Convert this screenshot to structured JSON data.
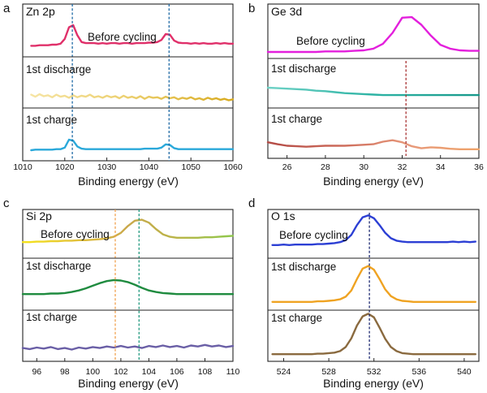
{
  "chart_data": [
    {
      "type": "line",
      "panel_label": "a",
      "title": "Zn 2p",
      "xlabel": "Binding energy (eV)",
      "xlim": [
        1010,
        1060
      ],
      "ylim": [
        0,
        100
      ],
      "xticks": [
        1010,
        1020,
        1030,
        1040,
        1050,
        1060
      ],
      "grid": false,
      "x": [
        1012,
        1013,
        1014,
        1015,
        1016,
        1017,
        1018,
        1019,
        1020,
        1021,
        1022,
        1023,
        1024,
        1025,
        1026,
        1027,
        1028,
        1029,
        1030,
        1031,
        1032,
        1033,
        1034,
        1035,
        1036,
        1037,
        1038,
        1039,
        1040,
        1041,
        1042,
        1043,
        1044,
        1045,
        1046,
        1047,
        1048,
        1049,
        1050,
        1051,
        1052,
        1053,
        1054,
        1055,
        1056,
        1057,
        1058,
        1059,
        1060
      ],
      "series": [
        {
          "name": "Before cycling",
          "color": "#e0306a",
          "values": [
            21,
            21,
            22,
            22,
            22,
            23,
            23,
            25,
            34,
            56,
            60,
            41,
            28,
            26,
            26,
            26,
            25,
            26,
            25,
            26,
            26,
            25,
            26,
            26,
            25,
            26,
            26,
            26,
            27,
            27,
            28,
            32,
            43,
            42,
            31,
            27,
            26,
            26,
            25,
            26,
            25,
            26,
            25,
            25,
            26,
            25,
            26,
            25,
            25
          ]
        },
        {
          "name": "1st discharge",
          "gradient": [
            "#f7e6a8",
            "#ecd070",
            "#d8aa1e"
          ],
          "values": [
            26,
            22,
            27,
            23,
            25,
            21,
            26,
            22,
            24,
            20,
            25,
            21,
            24,
            22,
            26,
            21,
            23,
            20,
            24,
            21,
            23,
            19,
            24,
            20,
            22,
            19,
            23,
            18,
            22,
            20,
            21,
            18,
            22,
            19,
            21,
            17,
            20,
            18,
            21,
            17,
            19,
            16,
            20,
            17,
            19,
            16,
            18,
            15,
            17
          ]
        },
        {
          "name": "1st charge",
          "color": "#2aa8da",
          "values": [
            20,
            21,
            21,
            21,
            21,
            21,
            22,
            22,
            25,
            40,
            38,
            27,
            23,
            22,
            22,
            22,
            22,
            22,
            22,
            22,
            22,
            22,
            22,
            22,
            22,
            22,
            22,
            23,
            23,
            23,
            23,
            25,
            31,
            30,
            24,
            22,
            22,
            22,
            22,
            22,
            22,
            22,
            22,
            22,
            22,
            22,
            22,
            22,
            22
          ]
        }
      ],
      "reference_lines": [
        {
          "x": 1021.8,
          "color": "#1f6aa5"
        },
        {
          "x": 1044.8,
          "color": "#1f6aa5"
        }
      ]
    },
    {
      "type": "line",
      "panel_label": "b",
      "title": "Ge 3d",
      "xlabel": "Binding energy (eV)",
      "xlim": [
        25,
        36
      ],
      "ylim": [
        0,
        100
      ],
      "xticks": [
        26,
        28,
        30,
        32,
        34,
        36
      ],
      "grid": false,
      "x": [
        25,
        25.5,
        26,
        26.5,
        27,
        27.5,
        28,
        28.5,
        29,
        29.5,
        30,
        30.5,
        31,
        31.5,
        32,
        32.5,
        33,
        33.5,
        34,
        34.5,
        35,
        35.5,
        36
      ],
      "series": [
        {
          "name": "Before cycling",
          "color": "#e31fdc",
          "values": [
            12,
            12,
            12,
            12,
            12,
            12,
            13,
            13,
            13,
            14,
            15,
            18,
            27,
            47,
            75,
            76,
            62,
            42,
            25,
            18,
            15,
            14,
            14
          ]
        },
        {
          "name": "1st discharge",
          "gradient": [
            "#6fd2c6",
            "#2db3a4",
            "#17998b"
          ],
          "values": [
            41,
            40,
            39,
            38,
            37,
            35,
            34,
            32,
            30,
            29,
            28,
            27,
            26,
            26,
            26,
            26,
            26,
            26,
            26,
            26,
            26,
            26,
            26
          ]
        },
        {
          "name": "1st charge",
          "gradient": [
            "#b34a45",
            "#cc6a5a",
            "#e7987a",
            "#efa46a"
          ],
          "values": [
            32,
            28,
            25,
            24,
            23,
            24,
            25,
            25,
            25,
            26,
            27,
            28,
            33,
            36,
            32,
            24,
            20,
            22,
            21,
            19,
            18,
            18,
            18
          ]
        }
      ],
      "reference_lines": [
        {
          "x": 32.2,
          "color": "#a83232"
        }
      ]
    },
    {
      "type": "line",
      "panel_label": "c",
      "title": "Si 2p",
      "xlabel": "Binding energy (eV)",
      "xlim": [
        95,
        110
      ],
      "ylim": [
        0,
        100
      ],
      "xticks": [
        96,
        98,
        100,
        102,
        104,
        106,
        108,
        110
      ],
      "grid": false,
      "x": [
        95,
        95.5,
        96,
        96.5,
        97,
        97.5,
        98,
        98.5,
        99,
        99.5,
        100,
        100.5,
        101,
        101.5,
        102,
        102.5,
        103,
        103.5,
        104,
        104.5,
        105,
        105.5,
        106,
        106.5,
        107,
        107.5,
        108,
        108.5,
        109,
        109.5,
        110
      ],
      "series": [
        {
          "name": "Before cycling",
          "gradient": [
            "#f5e31a",
            "#e3c23a",
            "#c9a84b",
            "#b8b648",
            "#8ec84c"
          ],
          "values": [
            33,
            33,
            34,
            34,
            35,
            35,
            36,
            36,
            37,
            37,
            38,
            39,
            41,
            44,
            52,
            66,
            77,
            79,
            73,
            60,
            49,
            44,
            42,
            42,
            42,
            42,
            43,
            43,
            44,
            45,
            46
          ]
        },
        {
          "name": "1st discharge",
          "color": "#1f8b3f",
          "values": [
            31,
            31,
            31,
            31,
            32,
            32,
            33,
            35,
            38,
            42,
            47,
            52,
            56,
            58,
            57,
            54,
            49,
            43,
            38,
            35,
            33,
            32,
            31,
            31,
            31,
            31,
            31,
            31,
            31,
            31,
            31
          ]
        },
        {
          "name": "1st charge",
          "color": "#6a5fa6",
          "values": [
            26,
            24,
            27,
            25,
            28,
            24,
            26,
            23,
            27,
            25,
            28,
            26,
            29,
            27,
            30,
            27,
            29,
            26,
            30,
            28,
            31,
            28,
            30,
            27,
            31,
            29,
            32,
            29,
            31,
            28,
            30
          ]
        }
      ],
      "reference_lines": [
        {
          "x": 101.6,
          "color": "#f2a14e"
        },
        {
          "x": 103.3,
          "color": "#229a7f"
        }
      ]
    },
    {
      "type": "line",
      "panel_label": "d",
      "title": "O 1s",
      "xlabel": "Binding energy (eV)",
      "xlim": [
        522.6,
        541.3
      ],
      "ylim": [
        0,
        100
      ],
      "xticks": [
        524,
        528,
        532,
        536,
        540
      ],
      "grid": false,
      "x": [
        523,
        523.5,
        524,
        524.5,
        525,
        525.5,
        526,
        526.5,
        527,
        527.5,
        528,
        528.5,
        529,
        529.5,
        530,
        530.5,
        531,
        531.5,
        532,
        532.5,
        533,
        533.5,
        534,
        534.5,
        535,
        535.5,
        536,
        536.5,
        537,
        537.5,
        538,
        538.5,
        539,
        539.5,
        540,
        540.5,
        541
      ],
      "series": [
        {
          "name": "Before cycling",
          "color": "#2c3fd4",
          "values": [
            27,
            27,
            28,
            27,
            28,
            28,
            28,
            28,
            29,
            29,
            30,
            31,
            33,
            37,
            48,
            68,
            84,
            88,
            82,
            68,
            52,
            41,
            36,
            34,
            33,
            33,
            33,
            33,
            33,
            33,
            33,
            33,
            34,
            33,
            34,
            33,
            34
          ]
        },
        {
          "name": "1st discharge",
          "color": "#efa322",
          "values": [
            16,
            16,
            16,
            16,
            16,
            16,
            16,
            16,
            17,
            17,
            18,
            19,
            21,
            26,
            38,
            60,
            80,
            85,
            78,
            60,
            40,
            27,
            21,
            18,
            17,
            16,
            16,
            16,
            16,
            16,
            16,
            16,
            16,
            16,
            16,
            16,
            16
          ]
        },
        {
          "name": "1st charge",
          "color": "#8a6a3f",
          "values": [
            14,
            14,
            14,
            14,
            14,
            14,
            14,
            14,
            15,
            15,
            16,
            17,
            20,
            28,
            45,
            70,
            88,
            93,
            86,
            66,
            44,
            28,
            20,
            16,
            15,
            14,
            14,
            14,
            14,
            14,
            14,
            14,
            14,
            14,
            14,
            14,
            14
          ]
        }
      ],
      "reference_lines": [
        {
          "x": 531.6,
          "color": "#1f2b72"
        }
      ]
    }
  ]
}
